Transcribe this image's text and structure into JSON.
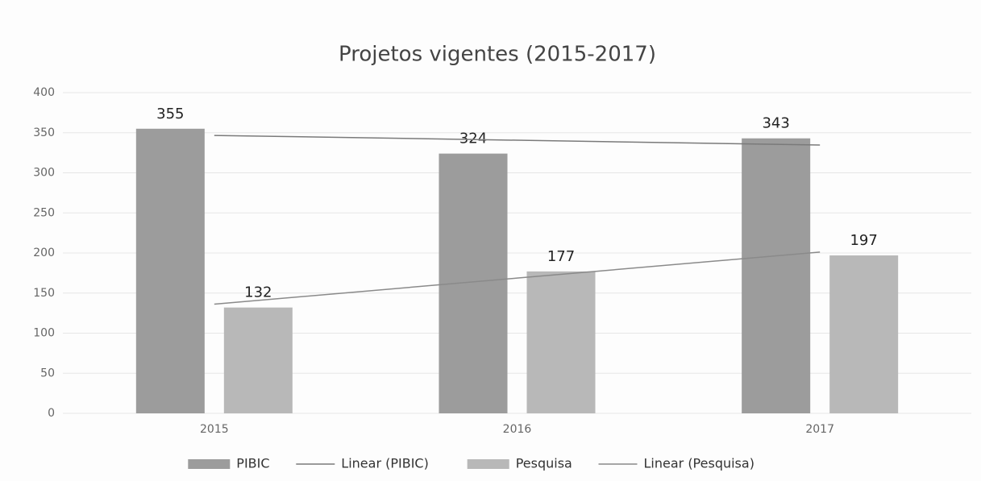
{
  "chart_data": {
    "type": "bar",
    "title": "Projetos vigentes (2015-2017)",
    "categories": [
      "2015",
      "2016",
      "2017"
    ],
    "series": [
      {
        "name": "PIBIC",
        "color": "#9c9c9c",
        "values": [
          355,
          324,
          343
        ],
        "trendline": {
          "name": "Linear (PIBIC)",
          "color": "#7a7a7a"
        }
      },
      {
        "name": "Pesquisa",
        "color": "#b8b8b8",
        "values": [
          132,
          177,
          197
        ],
        "trendline": {
          "name": "Linear (Pesquisa)",
          "color": "#8a8a8a"
        }
      }
    ],
    "ylim": [
      0,
      400
    ],
    "yticks": [
      0,
      50,
      100,
      150,
      200,
      250,
      300,
      350,
      400
    ],
    "grid": true,
    "legend": "bottom"
  }
}
